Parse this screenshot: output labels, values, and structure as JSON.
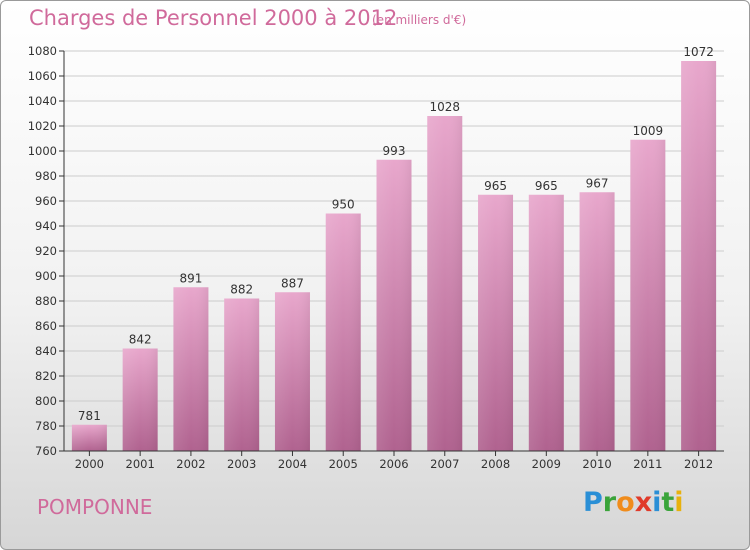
{
  "title": "Charges de Personnel 2000 à 2012",
  "subtitle": "(en milliers d'€)",
  "commune": "POMPONNE",
  "logo": {
    "text": "Proxiti",
    "letters": [
      {
        "char": "P",
        "color": "#2a8fd6"
      },
      {
        "char": "r",
        "color": "#3aa43a"
      },
      {
        "char": "o",
        "color": "#f08c1c"
      },
      {
        "char": "x",
        "color": "#e03a2a"
      },
      {
        "char": "i",
        "color": "#2a8fd6"
      },
      {
        "char": "t",
        "color": "#3aa43a"
      },
      {
        "char": "i",
        "color": "#e8b10c"
      }
    ]
  },
  "colors": {
    "accent": "#d06a9b",
    "bar_top": "#e8a7cc",
    "bar_bottom": "#b0628f",
    "axis": "#333333",
    "grid": "#cccccc"
  },
  "chart_data": {
    "type": "bar",
    "categories": [
      "2000",
      "2001",
      "2002",
      "2003",
      "2004",
      "2005",
      "2006",
      "2007",
      "2008",
      "2009",
      "2010",
      "2011",
      "2012"
    ],
    "values": [
      781,
      842,
      891,
      882,
      887,
      950,
      993,
      1028,
      965,
      965,
      967,
      1009,
      1072
    ],
    "ylim": [
      760,
      1080
    ],
    "yticks": [
      760,
      780,
      800,
      820,
      840,
      860,
      880,
      900,
      920,
      940,
      960,
      980,
      1000,
      1020,
      1040,
      1060,
      1080
    ],
    "xlabel": "",
    "ylabel": "",
    "grid": true
  }
}
